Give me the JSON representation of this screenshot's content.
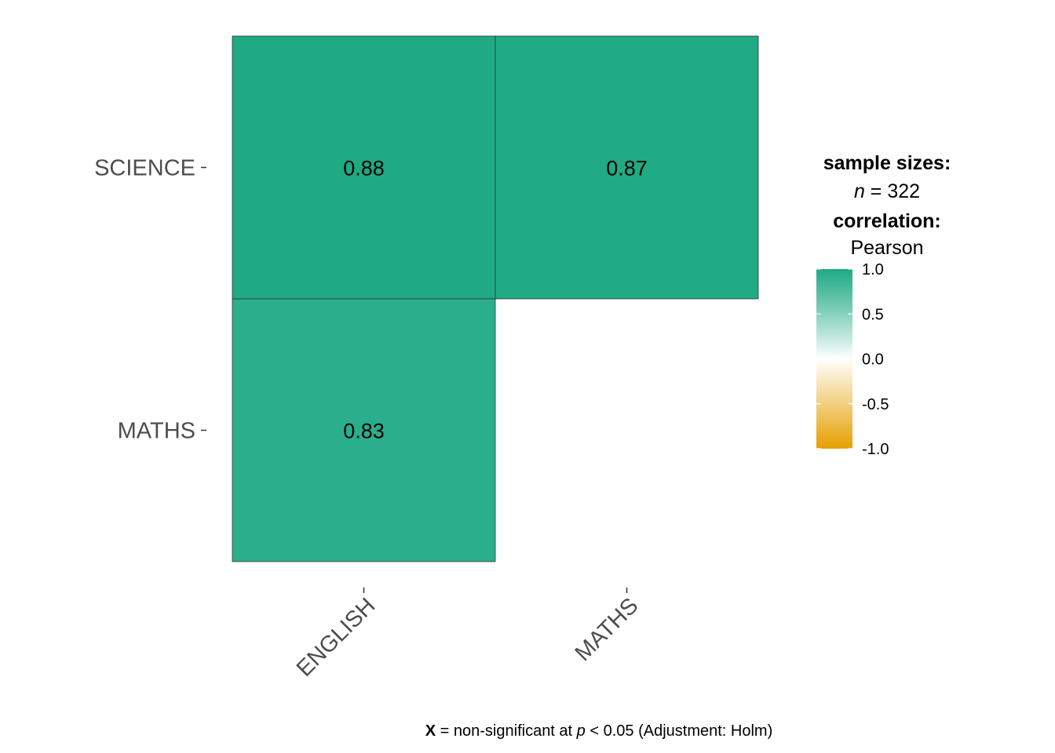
{
  "chart_data": {
    "type": "heatmap",
    "x_categories": [
      "ENGLISH",
      "MATHS"
    ],
    "y_categories": [
      "MATHS",
      "SCIENCE"
    ],
    "cells": [
      {
        "x": "ENGLISH",
        "y": "SCIENCE",
        "value": 0.88,
        "label": "0.88"
      },
      {
        "x": "MATHS",
        "y": "SCIENCE",
        "value": 0.87,
        "label": "0.87"
      },
      {
        "x": "ENGLISH",
        "y": "MATHS",
        "value": 0.83,
        "label": "0.83"
      }
    ],
    "legend": {
      "sample_title": "sample sizes:",
      "n_symbol": "n",
      "n_text": " = 322",
      "correlation_title": "correlation:",
      "correlation_method": "Pearson",
      "ticks": [
        "1.0",
        "0.5",
        "0.0",
        "-0.5",
        "-1.0"
      ],
      "tick_values": [
        1.0,
        0.5,
        0.0,
        -0.5,
        -1.0
      ],
      "range": [
        -1.0,
        1.0
      ],
      "placement": "right"
    },
    "color_scale": {
      "low": "#E69F00",
      "mid": "#FFFFFF",
      "high": "#009E73"
    },
    "caption": {
      "x_mark": "X",
      "part1": " = non-significant at ",
      "p_symbol": "p",
      "part2": " < 0.05 (Adjustment: Holm)"
    }
  }
}
